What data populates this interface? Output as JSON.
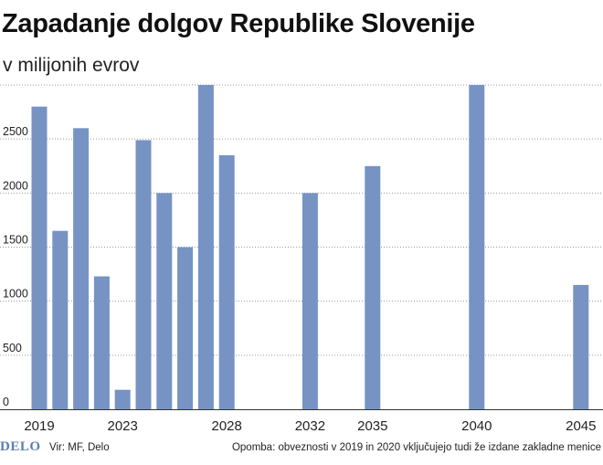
{
  "header": {
    "title": "Zapadanje dolgov Republike Slovenije",
    "subtitle": "v milijonih evrov"
  },
  "footer": {
    "logo": "DELO",
    "source": "Vir: MF, Delo",
    "note": "Opomba: obveznosti v 2019 in 2020 vključujejo tudi že izdane zakladne menice"
  },
  "colors": {
    "bar": "#7693c4",
    "grid": "#9a9a9a",
    "axis": "#333333"
  },
  "chart_data": {
    "type": "bar",
    "title": "Zapadanje dolgov Republike Slovenije",
    "subtitle": "v milijonih evrov",
    "xlabel": "",
    "ylabel": "",
    "ylim": [
      0,
      3000
    ],
    "xlim": [
      2019,
      2045
    ],
    "grid": true,
    "y_ticks": [
      0,
      500,
      1000,
      1500,
      2000,
      2500
    ],
    "x_ticks": [
      2019,
      2023,
      2028,
      2032,
      2035,
      2040,
      2045
    ],
    "x": [
      2019,
      2020,
      2021,
      2022,
      2023,
      2024,
      2025,
      2026,
      2027,
      2028,
      2032,
      2035,
      2040,
      2045
    ],
    "values": [
      2800,
      1650,
      2600,
      1230,
      180,
      2490,
      2000,
      1500,
      3000,
      2350,
      2000,
      2250,
      3000,
      1150
    ]
  }
}
